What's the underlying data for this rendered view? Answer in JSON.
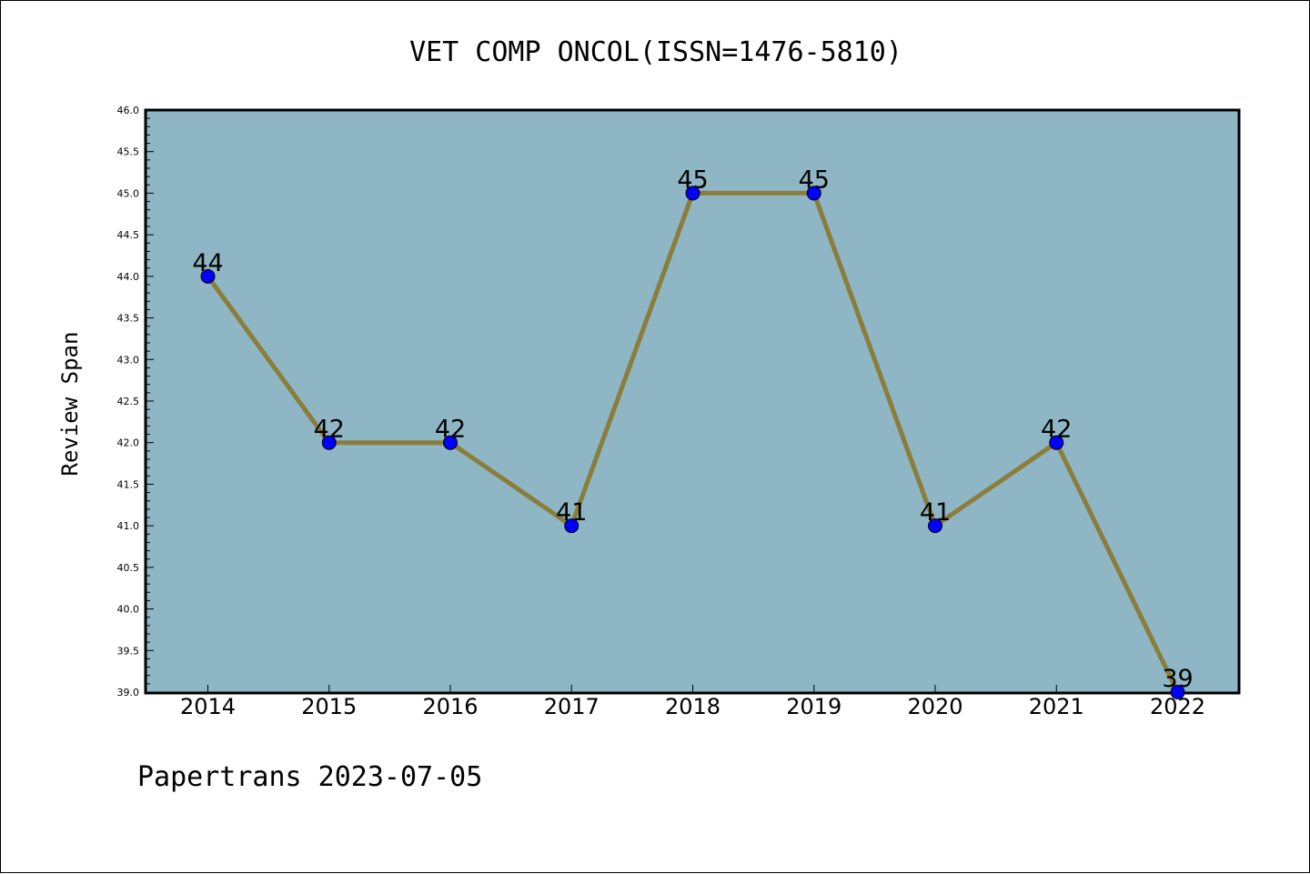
{
  "chart_data": {
    "type": "line",
    "title": "VET COMP ONCOL(ISSN=1476-5810)",
    "xlabel": "",
    "ylabel": "Review Span",
    "categories": [
      "2014",
      "2015",
      "2016",
      "2017",
      "2018",
      "2019",
      "2020",
      "2021",
      "2022"
    ],
    "series": [
      {
        "values": [
          44,
          42,
          42,
          41,
          45,
          45,
          41,
          42,
          39
        ],
        "data_labels": [
          "44",
          "42",
          "42",
          "41",
          "45",
          "45",
          "41",
          "42",
          "39"
        ],
        "line_color": "#8b7d3a",
        "marker_color": "#0000ff"
      }
    ],
    "ylim": [
      39.0,
      46.0
    ],
    "yticks": [
      "39.0",
      "39.5",
      "40.0",
      "40.5",
      "41.0",
      "41.5",
      "42.0",
      "42.5",
      "43.0",
      "43.5",
      "44.0",
      "44.5",
      "45.0",
      "45.5",
      "46.0"
    ],
    "grid": false,
    "plot_background": "#8fb6c4",
    "footer": "Papertrans 2023-07-05"
  }
}
